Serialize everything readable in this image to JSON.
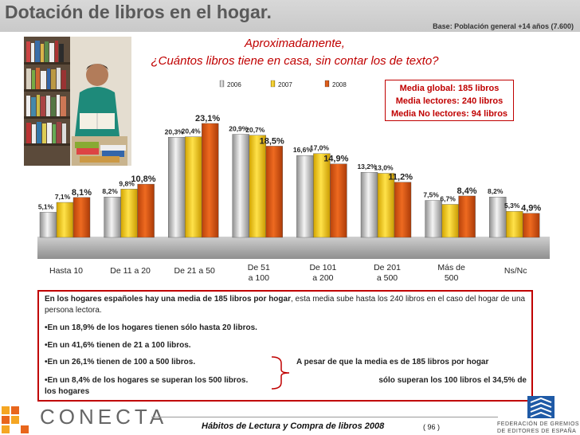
{
  "header": {
    "title": "Dotación de libros en el hogar.",
    "base": "Base: Población general +14 años (7.600)"
  },
  "question": {
    "line1": "Aproximadamente,",
    "line2": "¿Cuántos libros tiene en casa, sin contar los de texto?"
  },
  "media": {
    "global": "Media global: 185 libros",
    "lectores": "Media lectores: 240 libros",
    "no_lectores": "Media No lectores: 94 libros"
  },
  "chart_data": {
    "type": "bar",
    "categories": [
      [
        "Hasta 10"
      ],
      [
        "De 11 a 20"
      ],
      [
        "De 21 a 50"
      ],
      [
        "De 51",
        "a 100"
      ],
      [
        "De 101",
        "a 200"
      ],
      [
        "De 201",
        "a 500"
      ],
      [
        "Más de",
        "500"
      ],
      [
        "Ns/Nc"
      ]
    ],
    "series": [
      {
        "name": "2006",
        "values": [
          5.1,
          8.2,
          20.3,
          20.9,
          16.6,
          13.2,
          7.5,
          8.2
        ],
        "labels": [
          "5,1%",
          "8,2%",
          "20,3%",
          "20,9%",
          "16,6%",
          "13,2%",
          "7,5%",
          "8,2%"
        ]
      },
      {
        "name": "2007",
        "values": [
          7.1,
          9.8,
          20.4,
          20.7,
          17.0,
          13.0,
          6.7,
          5.3
        ],
        "labels": [
          "7,1%",
          "9,8%",
          "20,4%",
          "20,7%",
          "17,0%",
          "13,0%",
          "6,7%",
          "5,3%"
        ]
      },
      {
        "name": "2008",
        "values": [
          8.1,
          10.8,
          23.1,
          18.5,
          14.9,
          11.2,
          8.4,
          4.9
        ],
        "labels": [
          "8,1%",
          "10,8%",
          "23,1%",
          "18,5%",
          "14,9%",
          "11,2%",
          "8,4%",
          "4,9%"
        ]
      }
    ],
    "title": "¿Cuántos libros tiene en casa, sin contar los de texto?",
    "xlabel": "",
    "ylabel": "",
    "ylim": [
      0,
      25
    ],
    "legend": "top-center",
    "grid": false
  },
  "summary": {
    "intro_bold": "En los hogares españoles hay una media de 185 libros por hogar",
    "intro_rest": ", esta media sube hasta los 240 libros en el caso del hogar de una persona lectora.",
    "b1": "•En un 18,9% de los hogares tienen sólo hasta 20 libros.",
    "b2": "•En un 41,6% tienen de 21 a 100 libros.",
    "b3": "•En un 26,1% tienen de 100 a 500 libros.",
    "b4": "•En un 8,4% de los hogares se superan los 500 libros.",
    "b4_cont": "los hogares",
    "note1": "A pesar de que la media es de 185 libros por hogar",
    "note2": "sólo superan los 100 libros el 34,5% de"
  },
  "footer": {
    "brand": "CONECTA",
    "title": "Hábitos de Lectura y Compra de libros 2008",
    "page": "( 96 )",
    "fge1": "FEDERACIÓN DE GREMIOS",
    "fge2": "DE EDITORES DE ESPAÑA"
  },
  "colors": {
    "s2006": "#bdbdbd",
    "s2007": "#f2c200",
    "s2008": "#d9550a",
    "accent": "#c00000"
  }
}
